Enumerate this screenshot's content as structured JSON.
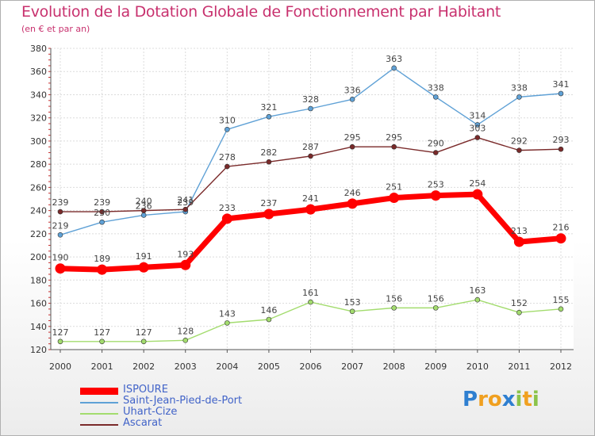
{
  "header": {
    "title": "Evolution de la Dotation Globale de Fonctionnement par Habitant",
    "subtitle": "(en € et par an)"
  },
  "chart_data": {
    "type": "line",
    "title": "Evolution de la Dotation Globale de Fonctionnement par Habitant",
    "subtitle": "(en € et par an)",
    "xlabel": "",
    "ylabel": "",
    "ylim": [
      120,
      380
    ],
    "yticks": [
      120,
      140,
      160,
      180,
      200,
      220,
      240,
      260,
      280,
      300,
      320,
      340,
      360,
      380
    ],
    "grid": true,
    "legend_position": "bottom-left",
    "categories": [
      "2000",
      "2001",
      "2002",
      "2003",
      "2004",
      "2005",
      "2006",
      "2007",
      "2008",
      "2009",
      "2010",
      "2011",
      "2012"
    ],
    "series": [
      {
        "name": "ISPOURE",
        "color": "#ff0000",
        "emphasis": "thick",
        "values": [
          190,
          189,
          191,
          193,
          233,
          237,
          241,
          246,
          251,
          253,
          254,
          213,
          216
        ]
      },
      {
        "name": "Saint-Jean-Pied-de-Port",
        "color": "#5fa1d6",
        "values": [
          219,
          230,
          236,
          239,
          310,
          321,
          328,
          336,
          363,
          338,
          314,
          338,
          341
        ]
      },
      {
        "name": "Uhart-Cize",
        "color": "#a3dc6e",
        "values": [
          127,
          127,
          127,
          128,
          143,
          146,
          161,
          153,
          156,
          156,
          163,
          152,
          155
        ]
      },
      {
        "name": "Ascarat",
        "color": "#7a2a2a",
        "values": [
          239,
          239,
          240,
          241,
          278,
          282,
          287,
          295,
          295,
          290,
          303,
          292,
          293
        ]
      }
    ]
  },
  "legend": {
    "items": [
      {
        "label": "ISPOURE",
        "color": "#ff0000"
      },
      {
        "label": "Saint-Jean-Pied-de-Port",
        "color": "#5fa1d6"
      },
      {
        "label": "Uhart-Cize",
        "color": "#a3dc6e"
      },
      {
        "label": "Ascarat",
        "color": "#7a2a2a"
      }
    ]
  },
  "logo": {
    "text": "Proxiti",
    "letters": [
      {
        "ch": "P",
        "color": "#2e7fd0"
      },
      {
        "ch": "r",
        "color": "#f0a020"
      },
      {
        "ch": "o",
        "color": "#f0a020"
      },
      {
        "ch": "x",
        "color": "#2e7fd0"
      },
      {
        "ch": "i",
        "color": "#8bc34a"
      },
      {
        "ch": "t",
        "color": "#f0a020"
      },
      {
        "ch": "i",
        "color": "#8bc34a"
      }
    ]
  },
  "colors": {
    "title": "#c8316e",
    "axis_text": "#333333",
    "grid": "#dddddd",
    "legend_text": "#4163c8",
    "value_label": "#444444"
  }
}
